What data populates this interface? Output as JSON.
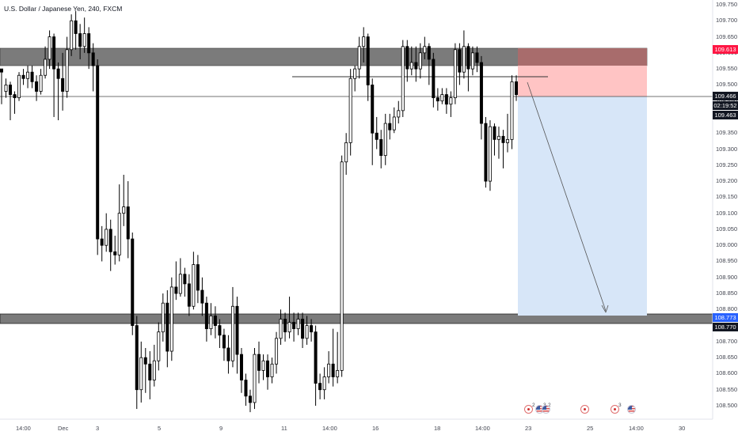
{
  "symbol_title": "U.S. Dollar / Japanese Yen, 240, FXCM",
  "price_axis": {
    "min": 108.45,
    "max": 109.8,
    "labels": [
      "109.750",
      "109.700",
      "109.650",
      "109.600",
      "109.550",
      "109.500",
      "109.450",
      "109.400",
      "109.350",
      "109.300",
      "109.250",
      "109.200",
      "109.150",
      "109.100",
      "109.050",
      "109.000",
      "108.950",
      "108.900",
      "108.850",
      "108.800",
      "108.750",
      "108.700",
      "108.650",
      "108.600",
      "108.550",
      "108.500"
    ],
    "values": [
      109.75,
      109.7,
      109.65,
      109.6,
      109.55,
      109.5,
      109.45,
      109.4,
      109.35,
      109.3,
      109.25,
      109.2,
      109.15,
      109.1,
      109.05,
      109.0,
      108.95,
      108.9,
      108.85,
      108.8,
      108.75,
      108.7,
      108.65,
      108.6,
      108.55,
      108.5
    ]
  },
  "time_axis": {
    "labels": [
      "14:00",
      "Dec",
      "3",
      "5",
      "9",
      "11",
      "14:00",
      "16",
      "18",
      "14:00",
      "23",
      "25",
      "14:00",
      "30"
    ]
  },
  "price_boxes": {
    "target_price": "109.613",
    "current_price": "109.466",
    "countdown": "02:19:52",
    "bid_price": "109.463",
    "stop_price": "108.773",
    "support_price": "108.770"
  },
  "colors": {
    "bull": "#ffffff",
    "bear": "#000000",
    "zone": "#7b7b7b",
    "stop_zone": "#ffc4c4",
    "stop_zone_dark": "#a86c6c",
    "target_zone": "#d7e6f8",
    "target_label": "#ff1744",
    "stop_label": "#2962ff"
  },
  "events": {
    "count_a": "2",
    "count_b": "3",
    "count_c": "2",
    "count_d": "3"
  },
  "candles": [
    [
      109.55,
      109.54,
      109.55,
      109.44
    ],
    [
      109.48,
      109.5,
      109.52,
      109.46
    ],
    [
      109.5,
      109.47,
      109.51,
      109.39
    ],
    [
      109.47,
      109.46,
      109.48,
      109.41
    ],
    [
      109.46,
      109.53,
      109.54,
      109.45
    ],
    [
      109.53,
      109.52,
      109.55,
      109.5
    ],
    [
      109.52,
      109.54,
      109.56,
      109.49
    ],
    [
      109.54,
      109.51,
      109.56,
      109.49
    ],
    [
      109.51,
      109.48,
      109.53,
      109.45
    ],
    [
      109.48,
      109.53,
      109.55,
      109.47
    ],
    [
      109.53,
      109.58,
      109.62,
      109.52
    ],
    [
      109.58,
      109.65,
      109.67,
      109.55
    ],
    [
      109.65,
      109.55,
      109.66,
      109.4
    ],
    [
      109.55,
      109.52,
      109.57,
      109.39
    ],
    [
      109.52,
      109.48,
      109.6,
      109.42
    ],
    [
      109.48,
      109.61,
      109.65,
      109.46
    ],
    [
      109.61,
      109.7,
      109.72,
      109.59
    ],
    [
      109.7,
      109.66,
      109.73,
      109.61
    ],
    [
      109.66,
      109.62,
      109.69,
      109.58
    ],
    [
      109.62,
      109.66,
      109.71,
      109.6
    ],
    [
      109.66,
      109.6,
      109.68,
      109.55
    ],
    [
      109.6,
      109.56,
      109.63,
      109.48
    ],
    [
      109.56,
      109.02,
      109.58,
      108.97
    ],
    [
      109.02,
      109.0,
      109.06,
      108.95
    ],
    [
      109.0,
      109.05,
      109.1,
      108.98
    ],
    [
      109.05,
      108.98,
      109.08,
      108.92
    ],
    [
      108.98,
      108.97,
      109.03,
      108.94
    ],
    [
      108.97,
      109.1,
      109.19,
      108.95
    ],
    [
      109.1,
      109.12,
      109.22,
      109.06
    ],
    [
      109.12,
      109.02,
      109.2,
      108.96
    ],
    [
      109.02,
      108.75,
      109.04,
      108.72
    ],
    [
      108.75,
      108.55,
      108.78,
      108.49
    ],
    [
      108.55,
      108.65,
      108.7,
      108.51
    ],
    [
      108.65,
      108.63,
      108.68,
      108.54
    ],
    [
      108.63,
      108.58,
      108.67,
      108.52
    ],
    [
      108.58,
      108.64,
      108.69,
      108.56
    ],
    [
      108.64,
      108.73,
      108.76,
      108.61
    ],
    [
      108.73,
      108.82,
      108.85,
      108.7
    ],
    [
      108.82,
      108.67,
      108.86,
      108.62
    ],
    [
      108.67,
      108.87,
      108.9,
      108.64
    ],
    [
      108.87,
      108.85,
      108.95,
      108.83
    ],
    [
      108.85,
      108.91,
      108.96,
      108.84
    ],
    [
      108.91,
      108.88,
      108.93,
      108.84
    ],
    [
      108.88,
      108.81,
      108.91,
      108.78
    ],
    [
      108.81,
      108.94,
      108.98,
      108.8
    ],
    [
      108.94,
      108.86,
      108.97,
      108.82
    ],
    [
      108.86,
      108.82,
      108.9,
      108.78
    ],
    [
      108.82,
      108.74,
      108.84,
      108.7
    ],
    [
      108.74,
      108.78,
      108.82,
      108.72
    ],
    [
      108.78,
      108.75,
      108.81,
      108.71
    ],
    [
      108.75,
      108.72,
      108.77,
      108.68
    ],
    [
      108.72,
      108.68,
      108.74,
      108.64
    ],
    [
      108.68,
      108.64,
      108.72,
      108.6
    ],
    [
      108.64,
      108.81,
      108.87,
      108.62
    ],
    [
      108.81,
      108.66,
      108.84,
      108.6
    ],
    [
      108.66,
      108.58,
      108.68,
      108.54
    ],
    [
      108.58,
      108.53,
      108.6,
      108.5
    ],
    [
      108.53,
      108.51,
      108.55,
      108.48
    ],
    [
      108.51,
      108.66,
      108.68,
      108.49
    ],
    [
      108.66,
      108.61,
      108.7,
      108.57
    ],
    [
      108.61,
      108.64,
      108.66,
      108.58
    ],
    [
      108.64,
      108.59,
      108.66,
      108.55
    ],
    [
      108.59,
      108.63,
      108.65,
      108.57
    ],
    [
      108.63,
      108.71,
      108.73,
      108.6
    ],
    [
      108.71,
      108.77,
      108.8,
      108.69
    ],
    [
      108.77,
      108.73,
      108.79,
      108.7
    ],
    [
      108.73,
      108.76,
      108.84,
      108.71
    ],
    [
      108.76,
      108.74,
      108.79,
      108.7
    ],
    [
      108.74,
      108.77,
      108.79,
      108.72
    ],
    [
      108.77,
      108.71,
      108.79,
      108.68
    ],
    [
      108.71,
      108.75,
      108.78,
      108.69
    ],
    [
      108.75,
      108.73,
      108.77,
      108.7
    ],
    [
      108.73,
      108.57,
      108.75,
      108.5
    ],
    [
      108.57,
      108.55,
      108.6,
      108.52
    ],
    [
      108.55,
      108.59,
      108.62,
      108.52
    ],
    [
      108.59,
      108.63,
      108.67,
      108.57
    ],
    [
      108.63,
      108.59,
      108.74,
      108.56
    ],
    [
      108.59,
      108.61,
      108.73,
      108.57
    ],
    [
      108.61,
      109.26,
      109.28,
      108.59
    ],
    [
      109.26,
      109.32,
      109.35,
      109.22
    ],
    [
      109.32,
      109.52,
      109.55,
      109.28
    ],
    [
      109.52,
      109.55,
      109.56,
      109.48
    ],
    [
      109.55,
      109.62,
      109.65,
      109.52
    ],
    [
      109.62,
      109.65,
      109.68,
      109.57
    ],
    [
      109.65,
      109.5,
      109.66,
      109.45
    ],
    [
      109.5,
      109.35,
      109.52,
      109.25
    ],
    [
      109.35,
      109.33,
      109.4,
      109.3
    ],
    [
      109.33,
      109.28,
      109.36,
      109.24
    ],
    [
      109.28,
      109.38,
      109.41,
      109.25
    ],
    [
      109.38,
      109.36,
      109.41,
      109.33
    ],
    [
      109.36,
      109.4,
      109.43,
      109.35
    ],
    [
      109.4,
      109.42,
      109.45,
      109.38
    ],
    [
      109.42,
      109.62,
      109.64,
      109.4
    ],
    [
      109.62,
      109.55,
      109.64,
      109.51
    ],
    [
      109.55,
      109.57,
      109.62,
      109.53
    ],
    [
      109.57,
      109.55,
      109.62,
      109.51
    ],
    [
      109.55,
      109.6,
      109.63,
      109.52
    ],
    [
      109.6,
      109.62,
      109.65,
      109.58
    ],
    [
      109.62,
      109.58,
      109.63,
      109.5
    ],
    [
      109.58,
      109.46,
      109.6,
      109.43
    ],
    [
      109.46,
      109.45,
      109.49,
      109.42
    ],
    [
      109.45,
      109.47,
      109.49,
      109.44
    ],
    [
      109.47,
      109.44,
      109.49,
      109.41
    ],
    [
      109.44,
      109.46,
      109.48,
      109.4
    ],
    [
      109.46,
      109.61,
      109.63,
      109.44
    ],
    [
      109.61,
      109.54,
      109.63,
      109.5
    ],
    [
      109.54,
      109.62,
      109.67,
      109.52
    ],
    [
      109.62,
      109.55,
      109.63,
      109.48
    ],
    [
      109.55,
      109.6,
      109.62,
      109.53
    ],
    [
      109.6,
      109.57,
      109.62,
      109.54
    ],
    [
      109.57,
      109.38,
      109.59,
      109.33
    ],
    [
      109.38,
      109.2,
      109.4,
      109.18
    ],
    [
      109.2,
      109.37,
      109.39,
      109.17
    ],
    [
      109.37,
      109.33,
      109.38,
      109.28
    ],
    [
      109.33,
      109.34,
      109.37,
      109.27
    ],
    [
      109.34,
      109.32,
      109.36,
      109.24
    ],
    [
      109.32,
      109.33,
      109.41,
      109.29
    ],
    [
      109.33,
      109.51,
      109.53,
      109.3
    ],
    [
      109.51,
      109.47,
      109.53,
      109.45
    ]
  ]
}
